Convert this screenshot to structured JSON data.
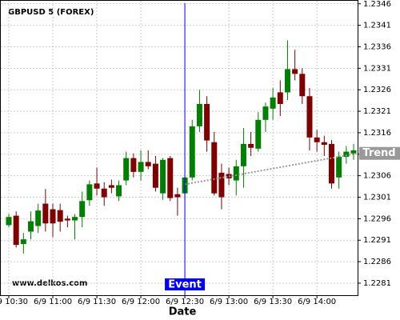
{
  "chart_data": {
    "type": "candlestick",
    "title": "GBPUSD 5 (FOREX)",
    "watermark": "www.delkos.com",
    "x_label": "Date",
    "categories": [
      "6/9 10:30",
      null,
      null,
      null,
      null,
      null,
      "6/9 11:00",
      null,
      null,
      null,
      null,
      null,
      "6/9 11:30",
      null,
      null,
      null,
      null,
      null,
      "6/9 12:00",
      null,
      null,
      null,
      null,
      null,
      "6/9 12:30",
      null,
      null,
      null,
      null,
      null,
      "6/9 13:00",
      null,
      null,
      null,
      null,
      null,
      "6/9 13:30",
      null,
      null,
      null,
      null,
      null,
      "6/9 14:00",
      null,
      null,
      null,
      null,
      null
    ],
    "open": [
      1.22945,
      1.22967,
      1.22901,
      1.2293,
      1.22943,
      1.22995,
      1.22982,
      1.2298,
      1.2296,
      1.22956,
      1.22964,
      1.23003,
      1.23042,
      1.2303,
      1.23038,
      1.23012,
      1.23049,
      1.23101,
      1.23069,
      1.23092,
      1.23088,
      1.23019,
      1.23101,
      1.23017,
      1.23019,
      1.23056,
      1.23175,
      1.23227,
      1.23138,
      1.23067,
      1.23064,
      1.23049,
      1.23082,
      1.23134,
      1.23123,
      1.2319,
      1.23216,
      1.23254,
      1.23254,
      1.23308,
      1.23297,
      1.23245,
      1.23149,
      1.23138,
      1.23134,
      1.23056,
      1.23104,
      1.23112
    ],
    "high": [
      1.22971,
      1.22977,
      1.22927,
      1.22977,
      1.22995,
      1.23029,
      1.22995,
      1.22995,
      1.22967,
      1.22971,
      1.23023,
      1.23049,
      1.23079,
      1.23045,
      1.23051,
      1.23049,
      1.23116,
      1.23112,
      1.23119,
      1.23119,
      1.23106,
      1.23101,
      1.23106,
      1.23032,
      1.23056,
      1.2319,
      1.2326,
      1.23245,
      1.23162,
      1.23088,
      1.23079,
      1.23097,
      1.23171,
      1.23162,
      1.23208,
      1.2323,
      1.23264,
      1.23282,
      1.23375,
      1.23353,
      1.2331,
      1.23264,
      1.23167,
      1.23153,
      1.23143,
      1.23116,
      1.23129,
      1.23134
    ],
    "low": [
      1.2294,
      1.22893,
      1.22879,
      1.22912,
      1.22927,
      1.2293,
      1.22917,
      1.2293,
      1.2294,
      1.22912,
      1.2294,
      1.2299,
      1.23014,
      1.2299,
      1.23019,
      1.23001,
      1.23038,
      1.23056,
      1.23049,
      1.23075,
      1.23023,
      1.23004,
      1.23001,
      1.22967,
      1.23004,
      1.23049,
      1.23162,
      1.23116,
      1.23014,
      1.22982,
      1.23038,
      1.23014,
      1.23032,
      1.23106,
      1.23116,
      1.23162,
      1.2319,
      1.23199,
      1.23236,
      1.23282,
      1.23227,
      1.23119,
      1.23116,
      1.23106,
      1.2303,
      1.2303,
      1.23088,
      1.23097
    ],
    "close": [
      1.22964,
      1.22899,
      1.22912,
      1.22954,
      1.22979,
      1.22949,
      1.22949,
      1.22953,
      1.22956,
      1.22964,
      1.23001,
      1.2304,
      1.2303,
      1.2301,
      1.23032,
      1.23038,
      1.23101,
      1.23069,
      1.23092,
      1.23082,
      1.23032,
      1.23097,
      1.23008,
      1.2301,
      1.23056,
      1.23175,
      1.23227,
      1.23142,
      1.23019,
      1.2301,
      1.23054,
      1.23082,
      1.23134,
      1.23125,
      1.2319,
      1.23221,
      1.23242,
      1.23227,
      1.23308,
      1.23297,
      1.23245,
      1.23149,
      1.23138,
      1.23132,
      1.23042,
      1.23104,
      1.23116,
      1.23119
    ],
    "up_color": "#008000",
    "down_color": "#800000",
    "ylim": [
      1.22782,
      1.23467
    ],
    "yticks": [
      1.2281,
      1.2286,
      1.2291,
      1.2296,
      1.2301,
      1.2306,
      1.2311,
      1.2316,
      1.2321,
      1.2326,
      1.2331,
      1.2336,
      1.2341,
      1.2346
    ],
    "grid": true,
    "event": {
      "label": "Event",
      "category": "6/9 12:30",
      "color": "#0000ff"
    },
    "trend": {
      "label": "Trend",
      "values": [
        1.2304,
        1.23112
      ],
      "color": "#999999"
    }
  }
}
